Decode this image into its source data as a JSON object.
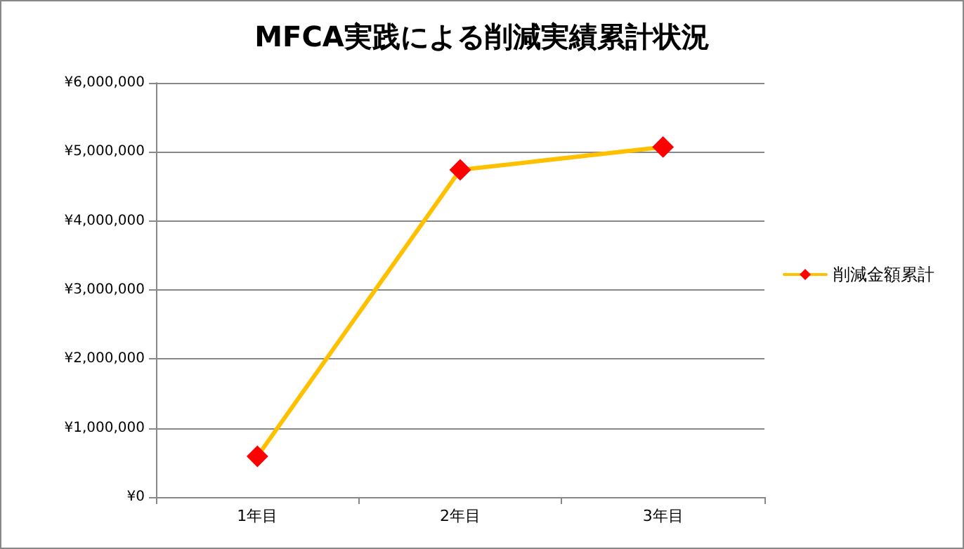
{
  "chart_data": {
    "type": "line",
    "title": "MFCA実践による削減実績累計状況",
    "categories": [
      "1年目",
      "2年目",
      "3年目"
    ],
    "series": [
      {
        "name": "削減金額累計",
        "color": "#ffc000",
        "values": [
          590000,
          4740000,
          5070000
        ]
      }
    ],
    "ylim": [
      0,
      6000000
    ],
    "yticks": [
      {
        "value": 0,
        "label": "¥0"
      },
      {
        "value": 1000000,
        "label": "¥1,000,000"
      },
      {
        "value": 2000000,
        "label": "¥2,000,000"
      },
      {
        "value": 3000000,
        "label": "¥3,000,000"
      },
      {
        "value": 4000000,
        "label": "¥4,000,000"
      },
      {
        "value": 5000000,
        "label": "¥5,000,000"
      },
      {
        "value": 6000000,
        "label": "¥6,000,000"
      }
    ],
    "grid": "y",
    "legend": "right",
    "marker": "diamond",
    "line_style": "solid"
  }
}
